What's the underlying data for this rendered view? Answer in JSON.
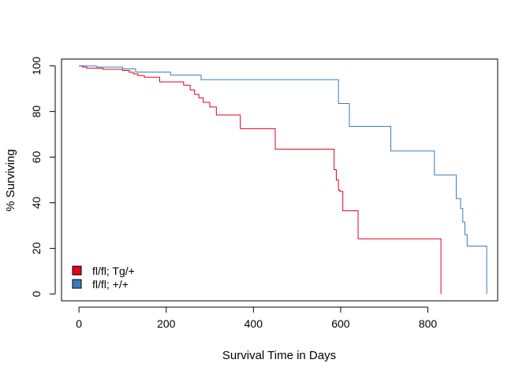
{
  "chart_data": {
    "type": "line",
    "step": true,
    "title": "",
    "xlabel": "Survival Time in Days",
    "ylabel": "% Surviving",
    "xlim": [
      -40,
      960
    ],
    "ylim": [
      -3,
      103
    ],
    "xticks": [
      0,
      200,
      400,
      600,
      800
    ],
    "yticks": [
      0,
      20,
      40,
      60,
      80,
      100
    ],
    "grid": false,
    "legend_position": "bottom-left",
    "series": [
      {
        "name": "fl/fl; Tg/+",
        "color": "#e3001b",
        "x": [
          0,
          8,
          18,
          55,
          100,
          115,
          125,
          135,
          150,
          185,
          240,
          255,
          265,
          275,
          285,
          300,
          315,
          370,
          450,
          585,
          590,
          595,
          598,
          605,
          640,
          830,
          830
        ],
        "y": [
          100,
          99.5,
          99,
          98.5,
          98,
          97.2,
          96.5,
          95.8,
          95,
          93,
          91.5,
          89.5,
          87.5,
          86,
          84,
          82,
          78.5,
          72.5,
          63.5,
          54.5,
          50,
          45.5,
          45,
          36.5,
          24.2,
          24.2,
          0
        ]
      },
      {
        "name": "fl/fl; +/+",
        "color": "#3a7bbf",
        "x": [
          0,
          40,
          100,
          130,
          210,
          280,
          595,
          620,
          715,
          815,
          865,
          875,
          880,
          885,
          890,
          935
        ],
        "y": [
          100,
          99.5,
          98.7,
          97.3,
          96,
          94,
          83.5,
          73.5,
          62.7,
          52.2,
          41.8,
          37.5,
          31.5,
          26,
          21,
          10.5
        ]
      }
    ],
    "series_end_x": [
      830,
      935
    ],
    "series_end_y": [
      0,
      0
    ]
  }
}
